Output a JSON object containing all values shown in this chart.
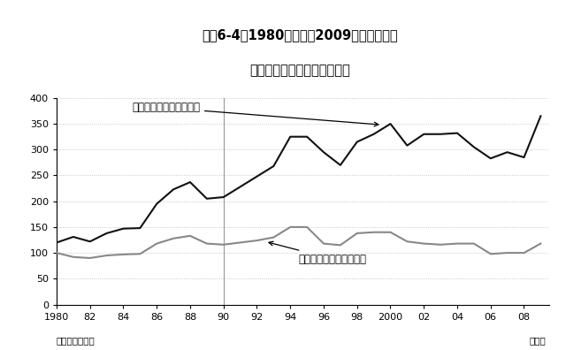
{
  "title_line1": "図表6-4　1980年代から2009年までの円の",
  "title_line2": "名目実質実効為替レート指数",
  "years": [
    1980,
    1981,
    1982,
    1983,
    1984,
    1985,
    1986,
    1987,
    1988,
    1989,
    1990,
    1991,
    1992,
    1993,
    1994,
    1995,
    1996,
    1997,
    1998,
    1999,
    2000,
    2001,
    2002,
    2003,
    2004,
    2005,
    2006,
    2007,
    2008,
    2009
  ],
  "nominal": [
    120,
    131,
    122,
    138,
    147,
    148,
    195,
    223,
    237,
    205,
    208,
    228,
    248,
    268,
    325,
    325,
    295,
    270,
    315,
    330,
    350,
    308,
    330,
    330,
    332,
    305,
    283,
    295,
    285,
    365
  ],
  "real": [
    100,
    92,
    90,
    95,
    97,
    98,
    118,
    128,
    133,
    118,
    116,
    120,
    124,
    130,
    150,
    150,
    118,
    115,
    138,
    140,
    140,
    122,
    118,
    116,
    118,
    118,
    98,
    100,
    100,
    118
  ],
  "nominal_color": "#111111",
  "real_color": "#888888",
  "vline_x": 1990,
  "ylim": [
    0,
    400
  ],
  "yticks": [
    0,
    50,
    100,
    150,
    200,
    250,
    300,
    350,
    400
  ],
  "xtick_labels": [
    "1980",
    "82",
    "84",
    "86",
    "88",
    "90",
    "92",
    "94",
    "96",
    "98",
    "2000",
    "02",
    "04",
    "06",
    "08"
  ],
  "xtick_positions": [
    1980,
    1982,
    1984,
    1986,
    1988,
    1990,
    1992,
    1994,
    1996,
    1998,
    2000,
    2002,
    2004,
    2006,
    2008
  ],
  "label_nominal": "名目実効為替レート指数",
  "label_real": "実質実効為替レート指数",
  "source": "出所：日本銀行",
  "year_label": "（年）",
  "background_color": "#ffffff",
  "grid_color": "#bbbbbb"
}
